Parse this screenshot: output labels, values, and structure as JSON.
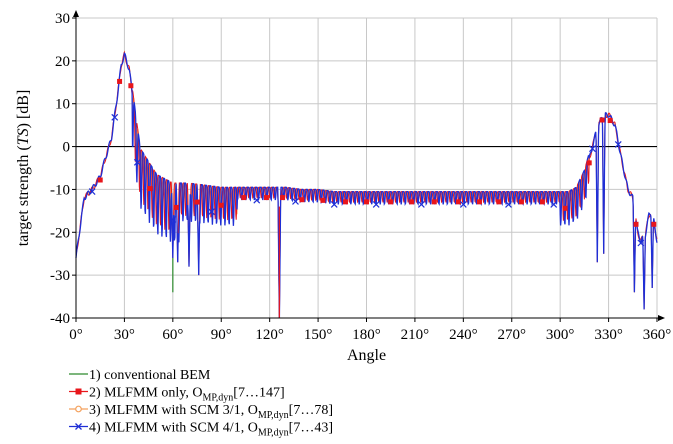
{
  "chart_data": {
    "type": "line",
    "xlabel": "Angle",
    "ylabel_parts": [
      "target strength (",
      "TS",
      ") [dB]"
    ],
    "xlim": [
      0,
      360
    ],
    "ylim": [
      -40,
      30
    ],
    "x_ticks": [
      0,
      30,
      60,
      90,
      120,
      150,
      180,
      210,
      240,
      270,
      300,
      330,
      360
    ],
    "x_tick_labels": [
      "0°",
      "30°",
      "60°",
      "90°",
      "120°",
      "150°",
      "180°",
      "210°",
      "240°",
      "270°",
      "300°",
      "330°",
      "360°"
    ],
    "y_ticks": [
      -40,
      -30,
      -20,
      -10,
      0,
      10,
      20,
      30
    ],
    "y_tick_labels": [
      "-40",
      "-30",
      "-20",
      "-10",
      "0",
      "10",
      "20",
      "30"
    ],
    "grid": true,
    "legend_position": "bottom-left",
    "legend": [
      {
        "num": "1)",
        "text": "conventional BEM",
        "sub": "",
        "suffix": "",
        "color": "#2e8b2e",
        "marker": "none"
      },
      {
        "num": "2)",
        "text": "MLFMM only, O",
        "sub": "MP,dyn",
        "suffix": "[7…147]",
        "color": "#e8161b",
        "marker": "square"
      },
      {
        "num": "3)",
        "text": "MLFMM with SCM 3/1, O",
        "sub": "MP,dyn",
        "suffix": "[7…78]",
        "color": "#f4a15d",
        "marker": "circle"
      },
      {
        "num": "4)",
        "text": "MLFMM with SCM 4/1, O",
        "sub": "MP,dyn",
        "suffix": "[7…43]",
        "color": "#1f2fd6",
        "marker": "x"
      }
    ],
    "envelope": {
      "x": [
        0,
        5,
        10,
        15,
        18,
        22,
        25,
        28,
        30,
        33,
        37,
        40,
        45,
        50,
        55,
        60,
        65,
        70,
        80,
        90,
        100,
        110,
        120,
        130,
        140,
        150,
        160,
        170,
        180,
        190,
        200,
        210,
        220,
        230,
        240,
        250,
        260,
        270,
        280,
        290,
        300,
        305,
        310,
        315,
        318,
        322,
        326,
        330,
        334,
        338,
        342,
        345,
        348,
        350,
        353,
        355,
        357,
        360
      ],
      "y": [
        -26,
        -12,
        -10,
        -7,
        -3,
        2,
        10,
        19,
        21.5,
        18,
        6,
        -2,
        -5,
        -8,
        -9,
        -10,
        -10,
        -10,
        -10.5,
        -11,
        -11,
        -11,
        -11,
        -11,
        -11.5,
        -11.5,
        -12,
        -12,
        -12,
        -12,
        -12,
        -12,
        -12,
        -12,
        -12,
        -12,
        -12,
        -12,
        -12,
        -12,
        -12,
        -12,
        -11,
        -7,
        -3,
        3,
        7,
        7.5,
        5,
        -3,
        -10,
        -12,
        -20,
        -22,
        -20,
        -16,
        -15,
        -22
      ]
    },
    "series": [
      {
        "name": "1) conventional BEM",
        "x": [
          60,
          60
        ],
        "y": [
          -26,
          -34
        ]
      },
      {
        "name": "2) MLFMM only, OMP,dyn[7…147]",
        "x": [
          126,
          126
        ],
        "y": [
          -14,
          -40
        ]
      }
    ],
    "osc_depth_deg": [
      [
        35,
        65,
        14
      ],
      [
        65,
        100,
        9
      ],
      [
        100,
        300,
        3
      ],
      [
        300,
        318,
        8
      ]
    ],
    "dips": [
      {
        "x": 60,
        "y": -26
      },
      {
        "x": 63,
        "y": -27
      },
      {
        "x": 70,
        "y": -28
      },
      {
        "x": 76,
        "y": -30
      },
      {
        "x": 126,
        "y": -40
      },
      {
        "x": 323,
        "y": -27
      },
      {
        "x": 327,
        "y": -25
      },
      {
        "x": 346,
        "y": -34
      },
      {
        "x": 352,
        "y": -38
      },
      {
        "x": 357,
        "y": -33
      }
    ]
  }
}
